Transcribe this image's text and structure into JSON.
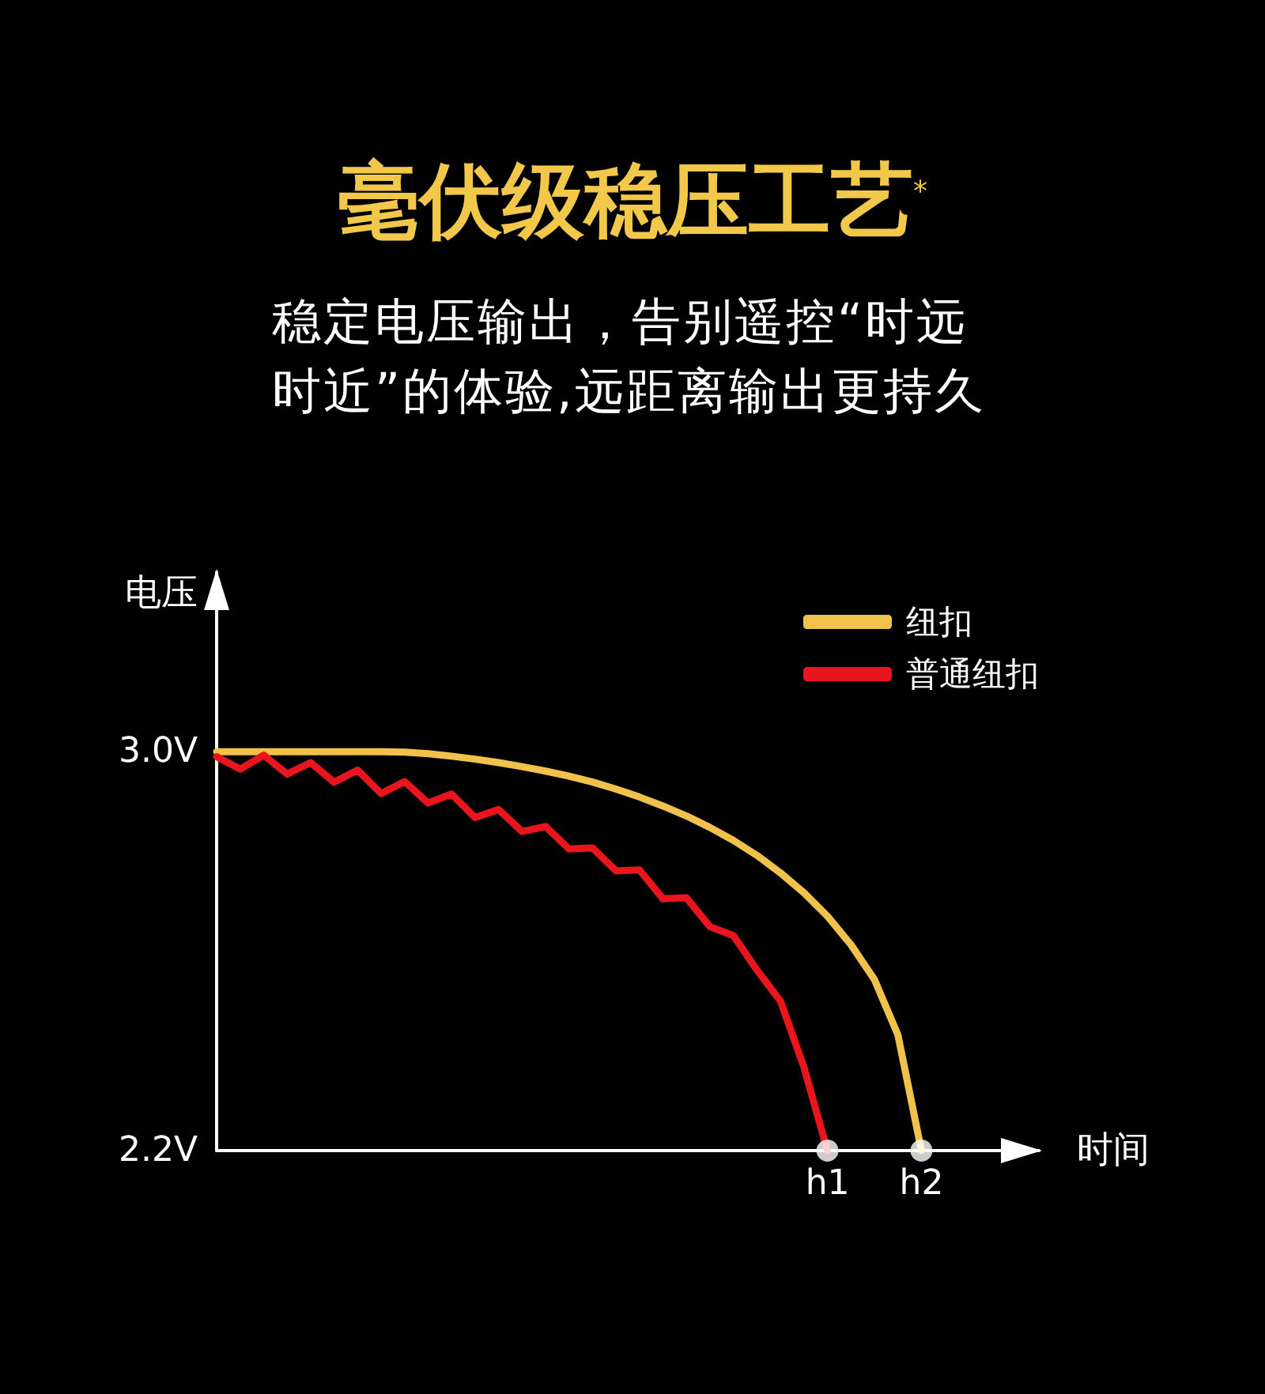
{
  "chart_data": {
    "type": "line",
    "title": "毫伏级稳压工艺$^{*}$",
    "subtitle": "稳定电压输出，告别遥控“时远时近”的体验,远距离输出更持久",
    "xlabel": "时间",
    "ylabel": "电压",
    "categories": [
      null,
      null,
      null,
      null,
      null,
      null,
      null,
      null,
      null,
      null,
      null,
      null,
      null,
      null,
      null,
      null,
      null,
      null,
      null,
      null,
      null,
      null,
      null,
      null,
      null,
      null,
      "h1",
      null,
      null,
      null,
      "h2",
      null,
      null,
      null,
      null,
      null
    ],
    "ylim": [
      2.2,
      3.36
    ],
    "yticks": [
      {
        "value": 2.2,
        "label": "2.2V"
      },
      {
        "value": 3,
        "label": "3.0V"
      }
    ],
    "grid": false,
    "legend": "top right",
    "marker": "none",
    "line_style": "solid",
    "series": [
      {
        "name": "纽扣",
        "color": "#f0c24b",
        "values": [
          3.0,
          3.0,
          3.0,
          3.0,
          3.0,
          3.0,
          3.0,
          3.0,
          2.999,
          2.996,
          2.991,
          2.985,
          2.978,
          2.97,
          2.961,
          2.951,
          2.939,
          2.925,
          2.909,
          2.891,
          2.871,
          2.848,
          2.822,
          2.792,
          2.757,
          2.717,
          2.67,
          2.613,
          2.543,
          2.432,
          2.2,
          null,
          null,
          null,
          null,
          null
        ]
      },
      {
        "name": "普通纽扣",
        "color": "#e8161c",
        "values": [
          2.99,
          2.965,
          2.993,
          2.955,
          2.978,
          2.939,
          2.963,
          2.916,
          2.94,
          2.897,
          2.915,
          2.868,
          2.884,
          2.84,
          2.85,
          2.805,
          2.807,
          2.761,
          2.763,
          2.705,
          2.707,
          2.649,
          2.631,
          2.562,
          2.5,
          2.367,
          2.2,
          null,
          null,
          null,
          null,
          null,
          null,
          null,
          null,
          null
        ]
      },
      {
        "type": "scatter",
        "marker": "circle",
        "color": "#ffffff",
        "values": [
          null,
          null,
          null,
          null,
          null,
          null,
          null,
          null,
          null,
          null,
          null,
          null,
          null,
          null,
          null,
          null,
          null,
          null,
          null,
          null,
          null,
          null,
          null,
          null,
          null,
          null,
          2.2,
          null,
          null,
          null,
          2.2,
          null,
          null,
          null,
          null,
          null
        ]
      }
    ]
  }
}
